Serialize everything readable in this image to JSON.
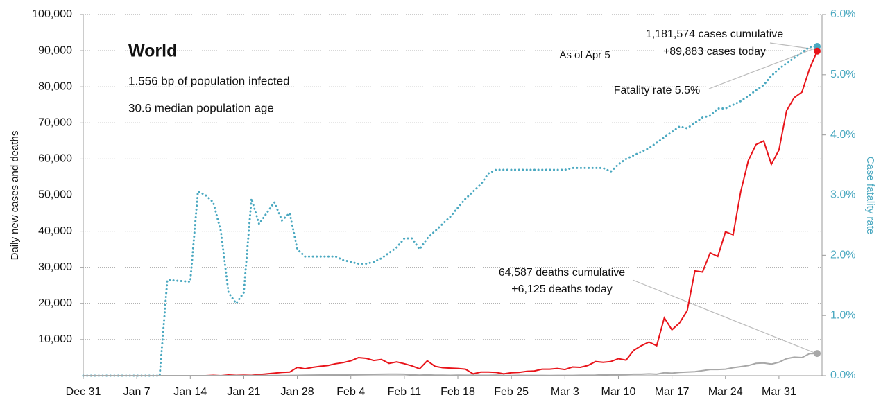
{
  "chart_data": {
    "type": "line",
    "ylabel": "Daily new cases and deaths",
    "y2label": "Case fatality rate",
    "annotations": [
      "World",
      "1.556 bp of population infected",
      "30.6 median population age",
      "As of Apr 5",
      "1,181,574 cases cumulative",
      "+89,883 cases today",
      "Fatality rate 5.5%",
      "64,587 deaths cumulative",
      "+6,125 deaths today"
    ],
    "categories": [
      "Dec 31",
      null,
      null,
      null,
      null,
      null,
      null,
      "Jan 7",
      null,
      null,
      null,
      null,
      null,
      null,
      "Jan 14",
      null,
      null,
      null,
      null,
      null,
      null,
      "Jan 21",
      null,
      null,
      null,
      null,
      null,
      null,
      "Jan 28",
      null,
      null,
      null,
      null,
      null,
      null,
      "Feb 4",
      null,
      null,
      null,
      null,
      null,
      null,
      "Feb 11",
      null,
      null,
      null,
      null,
      null,
      null,
      "Feb 18",
      null,
      null,
      null,
      null,
      null,
      null,
      "Feb 25",
      null,
      null,
      null,
      null,
      null,
      null,
      "Mar 3",
      null,
      null,
      null,
      null,
      null,
      null,
      "Mar 10",
      null,
      null,
      null,
      null,
      null,
      null,
      "Mar 17",
      null,
      null,
      null,
      null,
      null,
      null,
      "Mar 24",
      null,
      null,
      null,
      null,
      null,
      null,
      "Mar 31",
      null,
      null,
      null,
      null,
      null
    ],
    "series": [
      {
        "color": "#4aa8c0",
        "style": "dotted",
        "axis": "y2",
        "values": [
          0,
          0,
          0,
          0,
          0,
          0,
          0,
          0,
          0,
          0,
          0,
          1.59,
          1.58,
          1.57,
          1.56,
          3.06,
          3.0,
          2.88,
          2.4,
          1.38,
          1.2,
          1.38,
          2.94,
          2.52,
          2.7,
          2.88,
          2.58,
          2.7,
          2.1,
          1.98,
          1.98,
          1.98,
          1.98,
          1.98,
          1.92,
          1.89,
          1.86,
          1.86,
          1.89,
          1.95,
          2.04,
          2.13,
          2.28,
          2.28,
          2.1,
          2.28,
          2.4,
          2.52,
          2.64,
          2.79,
          2.94,
          3.06,
          3.18,
          3.36,
          3.42,
          3.42,
          3.42,
          3.42,
          3.42,
          3.42,
          3.42,
          3.42,
          3.42,
          3.42,
          3.45,
          3.45,
          3.45,
          3.45,
          3.45,
          3.39,
          3.51,
          3.6,
          3.66,
          3.72,
          3.78,
          3.87,
          3.96,
          4.05,
          4.14,
          4.11,
          4.2,
          4.29,
          4.32,
          4.44,
          4.44,
          4.5,
          4.56,
          4.65,
          4.74,
          4.83,
          4.98,
          5.1,
          5.19,
          5.28,
          5.37,
          5.46,
          5.47
        ]
      },
      {
        "color": "#e8141a",
        "style": "solid",
        "values": [
          0,
          0,
          0,
          0,
          0,
          0,
          0,
          0,
          0,
          0,
          0,
          0,
          0,
          0,
          0,
          0,
          0,
          100,
          0,
          200,
          100,
          150,
          100,
          300,
          500,
          700,
          900,
          1000,
          2300,
          1900,
          2300,
          2600,
          2800,
          3300,
          3600,
          4100,
          5000,
          4800,
          4200,
          4500,
          3400,
          3800,
          3300,
          2700,
          1900,
          4100,
          2600,
          2200,
          2100,
          2000,
          1800,
          500,
          1000,
          1000,
          900,
          500,
          800,
          900,
          1200,
          1300,
          1800,
          1800,
          2000,
          1700,
          2400,
          2300,
          2800,
          3900,
          3700,
          3900,
          4700,
          4300,
          7000,
          8300,
          9300,
          8300,
          16000,
          12700,
          14600,
          18000,
          29000,
          28700,
          34000,
          33000,
          39800,
          39000,
          51000,
          59600,
          64000,
          65000,
          58500,
          62500,
          73400,
          77000,
          78500,
          85000,
          89883
        ]
      },
      {
        "color": "#a8a8a8",
        "style": "solid",
        "values": [
          0,
          0,
          0,
          0,
          0,
          0,
          0,
          0,
          0,
          0,
          0,
          0,
          0,
          0,
          0,
          0,
          0,
          0,
          0,
          0,
          10,
          20,
          20,
          30,
          40,
          50,
          60,
          70,
          100,
          130,
          170,
          200,
          210,
          250,
          260,
          300,
          350,
          370,
          380,
          400,
          420,
          440,
          400,
          250,
          150,
          250,
          140,
          140,
          100,
          130,
          120,
          120,
          100,
          100,
          150,
          70,
          50,
          100,
          80,
          80,
          70,
          60,
          80,
          70,
          80,
          110,
          120,
          130,
          260,
          300,
          300,
          320,
          400,
          400,
          500,
          400,
          800,
          700,
          900,
          1000,
          1100,
          1400,
          1700,
          1700,
          1800,
          2200,
          2500,
          2800,
          3400,
          3500,
          3200,
          3700,
          4700,
          5100,
          5000,
          6100,
          6125
        ]
      }
    ],
    "ylim": [
      0,
      100000
    ],
    "yticks": [
      {
        "value": 10000,
        "label": "10,000"
      },
      {
        "value": 20000,
        "label": "20,000"
      },
      {
        "value": 30000,
        "label": "30,000"
      },
      {
        "value": 40000,
        "label": "40,000"
      },
      {
        "value": 50000,
        "label": "50,000"
      },
      {
        "value": 60000,
        "label": "60,000"
      },
      {
        "value": 70000,
        "label": "70,000"
      },
      {
        "value": 80000,
        "label": "80,000"
      },
      {
        "value": 90000,
        "label": "90,000"
      },
      {
        "value": 100000,
        "label": "100,000"
      }
    ],
    "y2lim": [
      0,
      6
    ],
    "y2ticks": [
      {
        "value": 0,
        "label": "0.0%"
      },
      {
        "value": 1,
        "label": "1.0%"
      },
      {
        "value": 2,
        "label": "2.0%"
      },
      {
        "value": 3,
        "label": "3.0%"
      },
      {
        "value": 4,
        "label": "4.0%"
      },
      {
        "value": 5,
        "label": "5.0%"
      },
      {
        "value": 6,
        "label": "6.0%"
      }
    ],
    "grid": true
  }
}
